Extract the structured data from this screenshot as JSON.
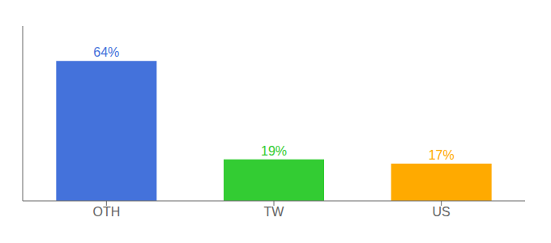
{
  "chart_data": {
    "type": "bar",
    "categories": [
      "OTH",
      "TW",
      "US"
    ],
    "values": [
      64,
      19,
      17
    ],
    "colors": [
      "#4472db",
      "#33cc33",
      "#ffaa00"
    ],
    "value_labels": [
      "64%",
      "19%",
      "17%"
    ],
    "data_labels": true,
    "ylim": [
      0,
      80
    ],
    "tick_labels": "x",
    "grid": false
  }
}
